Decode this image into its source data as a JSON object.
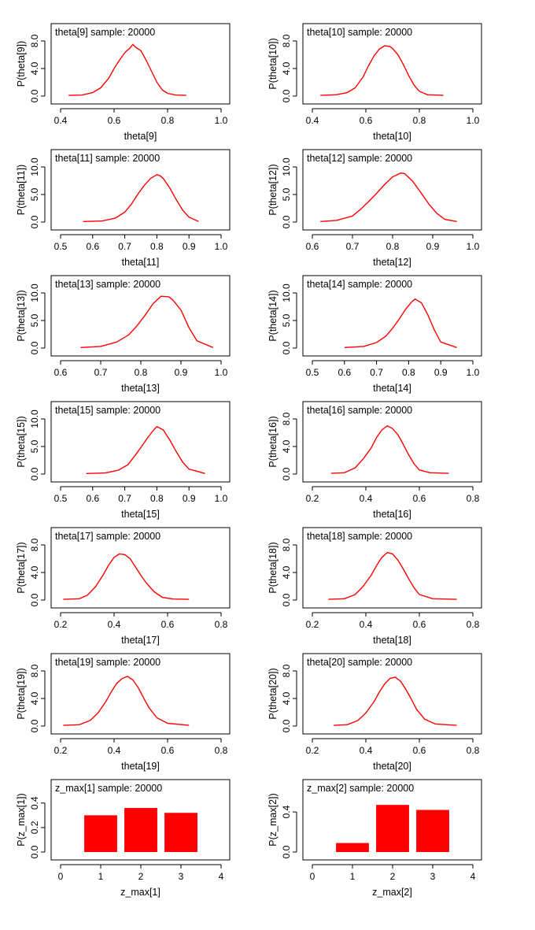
{
  "chart_data": [
    {
      "type": "line",
      "title": "theta[9] sample: 20000",
      "xlabel": "theta[9]",
      "ylabel": "P(theta[9])",
      "xlim": [
        0.4,
        1.0
      ],
      "ylim": [
        0,
        8
      ],
      "xticks": [
        0.4,
        0.6,
        0.8,
        1.0
      ],
      "yticks": [
        0.0,
        4.0,
        8.0
      ],
      "xtick_labels": [
        "0.4",
        "0.6",
        "0.8",
        "1.0"
      ],
      "ytick_labels": [
        "0.0",
        "4.0",
        "8.0"
      ],
      "x": [
        0.43,
        0.48,
        0.52,
        0.55,
        0.58,
        0.6,
        0.62,
        0.64,
        0.66,
        0.67,
        0.68,
        0.7,
        0.72,
        0.74,
        0.76,
        0.78,
        0.8,
        0.83,
        0.87
      ],
      "y": [
        0.1,
        0.15,
        0.5,
        1.2,
        2.6,
        4.0,
        5.2,
        6.3,
        7.0,
        7.5,
        7.1,
        6.6,
        5.2,
        3.6,
        2.0,
        0.9,
        0.4,
        0.15,
        0.1
      ]
    },
    {
      "type": "line",
      "title": "theta[10] sample: 20000",
      "xlabel": "theta[10]",
      "ylabel": "P(theta[10])",
      "xlim": [
        0.4,
        1.0
      ],
      "ylim": [
        0,
        8
      ],
      "xticks": [
        0.4,
        0.6,
        0.8,
        1.0
      ],
      "yticks": [
        0.0,
        4.0,
        8.0
      ],
      "xtick_labels": [
        "0.4",
        "0.6",
        "0.8",
        "1.0"
      ],
      "ytick_labels": [
        "0.0",
        "4.0",
        "8.0"
      ],
      "x": [
        0.43,
        0.49,
        0.53,
        0.56,
        0.59,
        0.61,
        0.63,
        0.65,
        0.67,
        0.69,
        0.7,
        0.72,
        0.74,
        0.76,
        0.78,
        0.8,
        0.83,
        0.89
      ],
      "y": [
        0.1,
        0.2,
        0.5,
        1.2,
        2.8,
        4.4,
        5.8,
        6.8,
        7.3,
        7.2,
        6.9,
        6.0,
        4.6,
        3.0,
        1.6,
        0.7,
        0.2,
        0.1
      ]
    },
    {
      "type": "line",
      "title": "theta[11] sample: 20000",
      "xlabel": "theta[11]",
      "ylabel": "P(theta[11])",
      "xlim": [
        0.5,
        1.0
      ],
      "ylim": [
        0,
        10
      ],
      "xticks": [
        0.5,
        0.6,
        0.7,
        0.8,
        0.9,
        1.0
      ],
      "yticks": [
        0.0,
        5.0,
        10.0
      ],
      "xtick_labels": [
        "0.5",
        "0.6",
        "0.7",
        "0.8",
        "0.9",
        "1.0"
      ],
      "ytick_labels": [
        "0.0",
        "5.0",
        "10.0"
      ],
      "x": [
        0.57,
        0.63,
        0.67,
        0.7,
        0.72,
        0.74,
        0.76,
        0.78,
        0.8,
        0.81,
        0.82,
        0.84,
        0.86,
        0.88,
        0.9,
        0.93
      ],
      "y": [
        0.1,
        0.2,
        0.7,
        1.8,
        3.2,
        5.0,
        6.6,
        7.9,
        8.6,
        8.4,
        7.9,
        6.2,
        4.1,
        2.2,
        0.9,
        0.1
      ]
    },
    {
      "type": "line",
      "title": "theta[12] sample: 20000",
      "xlabel": "theta[12]",
      "ylabel": "P(theta[12])",
      "xlim": [
        0.6,
        1.0
      ],
      "ylim": [
        0,
        10
      ],
      "xticks": [
        0.6,
        0.7,
        0.8,
        0.9,
        1.0
      ],
      "yticks": [
        0.0,
        5.0,
        10.0
      ],
      "xtick_labels": [
        "0.6",
        "0.7",
        "0.8",
        "0.9",
        "1.0"
      ],
      "ytick_labels": [
        "0.0",
        "5.0",
        "10.0"
      ],
      "x": [
        0.62,
        0.66,
        0.7,
        0.72,
        0.74,
        0.76,
        0.78,
        0.8,
        0.82,
        0.83,
        0.85,
        0.87,
        0.89,
        0.91,
        0.93,
        0.96
      ],
      "y": [
        0.1,
        0.3,
        1.1,
        2.3,
        3.7,
        5.2,
        6.8,
        8.2,
        8.9,
        8.8,
        7.4,
        5.4,
        3.3,
        1.6,
        0.5,
        0.1
      ]
    },
    {
      "type": "line",
      "title": "theta[13] sample: 20000",
      "xlabel": "theta[13]",
      "ylabel": "P(theta[13])",
      "xlim": [
        0.6,
        1.0
      ],
      "ylim": [
        0,
        10
      ],
      "xticks": [
        0.6,
        0.7,
        0.8,
        0.9,
        1.0
      ],
      "yticks": [
        0.0,
        5.0,
        10.0
      ],
      "xtick_labels": [
        "0.6",
        "0.7",
        "0.8",
        "0.9",
        "1.0"
      ],
      "ytick_labels": [
        "0.0",
        "5.0",
        "10.0"
      ],
      "x": [
        0.65,
        0.7,
        0.74,
        0.77,
        0.79,
        0.81,
        0.83,
        0.85,
        0.87,
        0.88,
        0.9,
        0.92,
        0.94,
        0.98
      ],
      "y": [
        0.1,
        0.3,
        1.1,
        2.4,
        4.0,
        5.9,
        8.0,
        9.4,
        9.3,
        8.7,
        6.9,
        3.7,
        1.3,
        0.1
      ]
    },
    {
      "type": "line",
      "title": "theta[14] sample: 20000",
      "xlabel": "theta[14]",
      "ylabel": "P(theta[14])",
      "xlim": [
        0.5,
        1.0
      ],
      "ylim": [
        0,
        10
      ],
      "xticks": [
        0.5,
        0.6,
        0.7,
        0.8,
        0.9,
        1.0
      ],
      "yticks": [
        0.0,
        5.0,
        10.0
      ],
      "xtick_labels": [
        "0.5",
        "0.6",
        "0.7",
        "0.8",
        "0.9",
        "1.0"
      ],
      "ytick_labels": [
        "0.0",
        "5.0",
        "10.0"
      ],
      "x": [
        0.6,
        0.66,
        0.7,
        0.73,
        0.75,
        0.77,
        0.79,
        0.81,
        0.82,
        0.84,
        0.86,
        0.88,
        0.9,
        0.95
      ],
      "y": [
        0.1,
        0.3,
        1.0,
        2.2,
        3.6,
        5.2,
        7.0,
        8.4,
        8.9,
        8.2,
        6.0,
        3.3,
        1.1,
        0.1
      ]
    },
    {
      "type": "line",
      "title": "theta[15] sample: 20000",
      "xlabel": "theta[15]",
      "ylabel": "P(theta[15])",
      "xlim": [
        0.5,
        1.0
      ],
      "ylim": [
        0,
        10
      ],
      "xticks": [
        0.5,
        0.6,
        0.7,
        0.8,
        0.9,
        1.0
      ],
      "yticks": [
        0.0,
        5.0,
        10.0
      ],
      "xtick_labels": [
        "0.5",
        "0.6",
        "0.7",
        "0.8",
        "0.9",
        "1.0"
      ],
      "ytick_labels": [
        "0.0",
        "5.0",
        "10.0"
      ],
      "x": [
        0.58,
        0.64,
        0.68,
        0.71,
        0.73,
        0.75,
        0.77,
        0.79,
        0.8,
        0.82,
        0.84,
        0.86,
        0.88,
        0.9,
        0.95
      ],
      "y": [
        0.1,
        0.2,
        0.7,
        1.7,
        3.2,
        4.8,
        6.5,
        8.0,
        8.6,
        8.0,
        6.2,
        4.1,
        2.2,
        0.9,
        0.1
      ]
    },
    {
      "type": "line",
      "title": "theta[16] sample: 20000",
      "xlabel": "theta[16]",
      "ylabel": "P(theta[16])",
      "xlim": [
        0.2,
        0.8
      ],
      "ylim": [
        0,
        8
      ],
      "xticks": [
        0.2,
        0.4,
        0.6,
        0.8
      ],
      "yticks": [
        0.0,
        4.0,
        8.0
      ],
      "xtick_labels": [
        "0.2",
        "0.4",
        "0.6",
        "0.8"
      ],
      "ytick_labels": [
        "0.0",
        "4.0",
        "8.0"
      ],
      "x": [
        0.27,
        0.32,
        0.36,
        0.39,
        0.42,
        0.44,
        0.46,
        0.48,
        0.5,
        0.52,
        0.54,
        0.56,
        0.58,
        0.6,
        0.64,
        0.71
      ],
      "y": [
        0.1,
        0.2,
        0.9,
        2.2,
        3.8,
        5.3,
        6.4,
        7.0,
        6.6,
        5.7,
        4.3,
        2.8,
        1.5,
        0.6,
        0.2,
        0.1
      ]
    },
    {
      "type": "line",
      "title": "theta[17] sample: 20000",
      "xlabel": "theta[17]",
      "ylabel": "P(theta[17])",
      "xlim": [
        0.2,
        0.8
      ],
      "ylim": [
        0,
        8
      ],
      "xticks": [
        0.2,
        0.4,
        0.6,
        0.8
      ],
      "yticks": [
        0.0,
        4.0,
        8.0
      ],
      "xtick_labels": [
        "0.2",
        "0.4",
        "0.6",
        "0.8"
      ],
      "ytick_labels": [
        "0.0",
        "4.0",
        "8.0"
      ],
      "x": [
        0.21,
        0.27,
        0.3,
        0.33,
        0.36,
        0.38,
        0.4,
        0.42,
        0.44,
        0.46,
        0.48,
        0.5,
        0.52,
        0.55,
        0.58,
        0.62,
        0.68
      ],
      "y": [
        0.1,
        0.2,
        0.7,
        1.9,
        3.7,
        5.1,
        6.2,
        6.7,
        6.6,
        6.0,
        4.8,
        3.6,
        2.5,
        1.2,
        0.4,
        0.15,
        0.1
      ]
    },
    {
      "type": "line",
      "title": "theta[18] sample: 20000",
      "xlabel": "theta[18]",
      "ylabel": "P(theta[18])",
      "xlim": [
        0.2,
        0.8
      ],
      "ylim": [
        0,
        8
      ],
      "xticks": [
        0.2,
        0.4,
        0.6,
        0.8
      ],
      "yticks": [
        0.0,
        4.0,
        8.0
      ],
      "xtick_labels": [
        "0.2",
        "0.4",
        "0.6",
        "0.8"
      ],
      "ytick_labels": [
        "0.0",
        "4.0",
        "8.0"
      ],
      "x": [
        0.26,
        0.32,
        0.36,
        0.39,
        0.42,
        0.44,
        0.46,
        0.48,
        0.5,
        0.52,
        0.54,
        0.56,
        0.58,
        0.6,
        0.65,
        0.74
      ],
      "y": [
        0.1,
        0.2,
        0.8,
        2.0,
        3.6,
        5.0,
        6.2,
        6.9,
        6.7,
        5.8,
        4.5,
        3.1,
        1.8,
        0.8,
        0.2,
        0.1
      ]
    },
    {
      "type": "line",
      "title": "theta[19] sample: 20000",
      "xlabel": "theta[19]",
      "ylabel": "P(theta[19])",
      "xlim": [
        0.2,
        0.8
      ],
      "ylim": [
        0,
        8
      ],
      "xticks": [
        0.2,
        0.4,
        0.6,
        0.8
      ],
      "yticks": [
        0.0,
        4.0,
        8.0
      ],
      "xtick_labels": [
        "0.2",
        "0.4",
        "0.6",
        "0.8"
      ],
      "ytick_labels": [
        "0.0",
        "4.0",
        "8.0"
      ],
      "x": [
        0.21,
        0.27,
        0.31,
        0.34,
        0.37,
        0.39,
        0.41,
        0.43,
        0.45,
        0.47,
        0.49,
        0.51,
        0.53,
        0.56,
        0.6,
        0.68
      ],
      "y": [
        0.1,
        0.2,
        0.8,
        1.9,
        3.6,
        5.0,
        6.2,
        6.9,
        7.2,
        6.7,
        5.6,
        4.1,
        2.7,
        1.2,
        0.4,
        0.1
      ]
    },
    {
      "type": "line",
      "title": "theta[20] sample: 20000",
      "xlabel": "theta[20]",
      "ylabel": "P(theta[20])",
      "xlim": [
        0.2,
        0.8
      ],
      "ylim": [
        0,
        8
      ],
      "xticks": [
        0.2,
        0.4,
        0.6,
        0.8
      ],
      "yticks": [
        0.0,
        4.0,
        8.0
      ],
      "xtick_labels": [
        "0.2",
        "0.4",
        "0.6",
        "0.8"
      ],
      "ytick_labels": [
        "0.0",
        "4.0",
        "8.0"
      ],
      "x": [
        0.28,
        0.33,
        0.37,
        0.4,
        0.43,
        0.45,
        0.47,
        0.49,
        0.51,
        0.53,
        0.55,
        0.57,
        0.59,
        0.62,
        0.66,
        0.74
      ],
      "y": [
        0.1,
        0.2,
        0.8,
        1.9,
        3.5,
        4.9,
        6.1,
        6.9,
        7.1,
        6.5,
        5.3,
        3.9,
        2.4,
        1.0,
        0.3,
        0.1
      ]
    },
    {
      "type": "bar",
      "title": "z_max[1] sample: 20000",
      "xlabel": "z_max[1]",
      "ylabel": "P(z_max[1])",
      "xlim": [
        0,
        4
      ],
      "ylim": [
        0,
        0.45
      ],
      "xticks": [
        0,
        1,
        2,
        3,
        4
      ],
      "yticks": [
        0.0,
        0.2,
        0.4
      ],
      "xtick_labels": [
        "0",
        "1",
        "2",
        "3",
        "4"
      ],
      "ytick_labels": [
        "0.0",
        "0.2",
        "0.4"
      ],
      "categories": [
        1,
        2,
        3
      ],
      "values": [
        0.3,
        0.36,
        0.32
      ]
    },
    {
      "type": "bar",
      "title": "z_max[2] sample: 20000",
      "xlabel": "z_max[2]",
      "ylabel": "P(z_max[2])",
      "xlim": [
        0,
        4
      ],
      "ylim": [
        0,
        0.55
      ],
      "xticks": [
        0,
        1,
        2,
        3,
        4
      ],
      "yticks": [
        0.0,
        0.4
      ],
      "xtick_labels": [
        "0",
        "1",
        "2",
        "3",
        "4"
      ],
      "ytick_labels": [
        "0.0",
        "0.4"
      ],
      "categories": [
        1,
        2,
        3
      ],
      "values": [
        0.09,
        0.47,
        0.42
      ]
    }
  ],
  "colors": {
    "curve": "#ff0000",
    "bar": "#ff0000",
    "axis": "#000000"
  }
}
